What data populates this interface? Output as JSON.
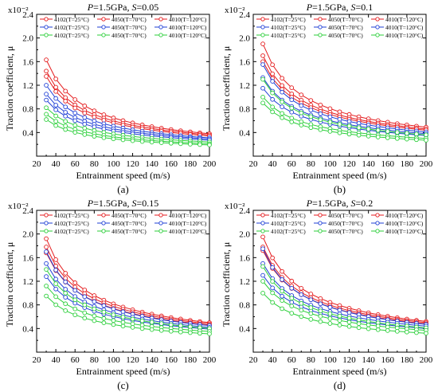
{
  "figure": {
    "panels": [
      "(a)",
      "(b)",
      "(c)",
      "(d)"
    ]
  },
  "chart_data": [
    {
      "panel_label": "(a)",
      "type": "line",
      "title": "P=1.5GPa, S=0.05",
      "ylabel": "Traction coefficient, μ",
      "xlabel": "Entrainment speed (m/s)",
      "yscale_label": "x10⁻²",
      "xlim": [
        20,
        200
      ],
      "ylim": [
        0,
        2.4
      ],
      "xticks": [
        20,
        40,
        60,
        80,
        100,
        120,
        140,
        160,
        180,
        200
      ],
      "yticks": [
        0.4,
        0.8,
        1.2,
        1.6,
        2.0,
        2.4
      ],
      "grid": false,
      "legend_position": "top",
      "x": [
        30,
        40,
        50,
        60,
        70,
        80,
        90,
        100,
        110,
        120,
        130,
        140,
        150,
        160,
        170,
        180,
        190,
        200
      ],
      "series": [
        {
          "name": "4102(T=25°C)",
          "color": "#e41a1c",
          "y0": 1.63,
          "yend": 0.38
        },
        {
          "name": "4102(T=25°C)",
          "color": "#e41a1c",
          "y0": 1.44,
          "yend": 0.36
        },
        {
          "name": "4102(T=25°C)",
          "color": "#e41a1c",
          "y0": 1.35,
          "yend": 0.34
        },
        {
          "name": "4050(T=70°C)",
          "color": "#1f3fd6",
          "y0": 1.2,
          "yend": 0.31
        },
        {
          "name": "4050(T=70°C)",
          "color": "#1f3fd6",
          "y0": 1.05,
          "yend": 0.29
        },
        {
          "name": "4050(T=70°C)",
          "color": "#1f3fd6",
          "y0": 0.95,
          "yend": 0.27
        },
        {
          "name": "4010(T=120°C)",
          "color": "#2bcf3a",
          "y0": 0.82,
          "yend": 0.24
        },
        {
          "name": "4010(T=120°C)",
          "color": "#2bcf3a",
          "y0": 0.71,
          "yend": 0.21
        },
        {
          "name": "4010(T=120°C)",
          "color": "#2bcf3a",
          "y0": 0.62,
          "yend": 0.19
        }
      ]
    },
    {
      "panel_label": "(b)",
      "type": "line",
      "title": "P=1.5GPa, S=0.1",
      "ylabel": "Traction coefficient, μ",
      "xlabel": "Entrainment speed (m/s)",
      "yscale_label": "x10⁻²",
      "xlim": [
        20,
        200
      ],
      "ylim": [
        0,
        2.4
      ],
      "xticks": [
        20,
        40,
        60,
        80,
        100,
        120,
        140,
        160,
        180,
        200
      ],
      "yticks": [
        0.4,
        0.8,
        1.2,
        1.6,
        2.0,
        2.4
      ],
      "grid": false,
      "legend_position": "top",
      "x": [
        30,
        40,
        50,
        60,
        70,
        80,
        90,
        100,
        110,
        120,
        130,
        140,
        150,
        160,
        170,
        180,
        190,
        200
      ],
      "series": [
        {
          "name": "4102(T=25°C)",
          "color": "#e41a1c",
          "y0": 1.9,
          "yend": 0.49
        },
        {
          "name": "4102(T=25°C)",
          "color": "#e41a1c",
          "y0": 1.7,
          "yend": 0.46
        },
        {
          "name": "4102(T=25°C)",
          "color": "#e41a1c",
          "y0": 1.6,
          "yend": 0.44
        },
        {
          "name": "4050(T=70°C)",
          "color": "#1f3fd6",
          "y0": 1.55,
          "yend": 0.41
        },
        {
          "name": "4050(T=70°C)",
          "color": "#1f3fd6",
          "y0": 1.33,
          "yend": 0.38
        },
        {
          "name": "4050(T=70°C)",
          "color": "#1f3fd6",
          "y0": 1.15,
          "yend": 0.35
        },
        {
          "name": "4010(T=120°C)",
          "color": "#2bcf3a",
          "y0": 1.3,
          "yend": 0.36
        },
        {
          "name": "4010(T=120°C)",
          "color": "#2bcf3a",
          "y0": 1.0,
          "yend": 0.3
        },
        {
          "name": "4010(T=120°C)",
          "color": "#2bcf3a",
          "y0": 0.9,
          "yend": 0.27
        }
      ]
    },
    {
      "panel_label": "(c)",
      "type": "line",
      "title": "P=1.5GPa, S=0.15",
      "ylabel": "Traction coefficient, μ",
      "xlabel": "Entrainment speed (m/s)",
      "yscale_label": "x10⁻²",
      "xlim": [
        20,
        200
      ],
      "ylim": [
        0,
        2.4
      ],
      "xticks": [
        20,
        40,
        60,
        80,
        100,
        120,
        140,
        160,
        180,
        200
      ],
      "yticks": [
        0.4,
        0.8,
        1.2,
        1.6,
        2.0,
        2.4
      ],
      "grid": false,
      "legend_position": "top",
      "x": [
        30,
        40,
        50,
        60,
        70,
        80,
        90,
        100,
        110,
        120,
        130,
        140,
        150,
        160,
        170,
        180,
        190,
        200
      ],
      "series": [
        {
          "name": "4102(T=25°C)",
          "color": "#e41a1c",
          "y0": 1.92,
          "yend": 0.5
        },
        {
          "name": "4102(T=25°C)",
          "color": "#e41a1c",
          "y0": 1.78,
          "yend": 0.48
        },
        {
          "name": "4102(T=25°C)",
          "color": "#e41a1c",
          "y0": 1.68,
          "yend": 0.46
        },
        {
          "name": "4050(T=70°C)",
          "color": "#1f3fd6",
          "y0": 1.7,
          "yend": 0.45
        },
        {
          "name": "4050(T=70°C)",
          "color": "#1f3fd6",
          "y0": 1.5,
          "yend": 0.42
        },
        {
          "name": "4050(T=70°C)",
          "color": "#1f3fd6",
          "y0": 1.28,
          "yend": 0.39
        },
        {
          "name": "4010(T=120°C)",
          "color": "#2bcf3a",
          "y0": 1.4,
          "yend": 0.4
        },
        {
          "name": "4010(T=120°C)",
          "color": "#2bcf3a",
          "y0": 1.12,
          "yend": 0.35
        },
        {
          "name": "4010(T=120°C)",
          "color": "#2bcf3a",
          "y0": 0.95,
          "yend": 0.31
        }
      ]
    },
    {
      "panel_label": "(d)",
      "type": "line",
      "title": "P=1.5GPa, S=0.2",
      "ylabel": "Traction coefficient, μ",
      "xlabel": "Entrainment speed (m/s)",
      "yscale_label": "x10⁻²",
      "xlim": [
        20,
        200
      ],
      "ylim": [
        0,
        2.4
      ],
      "xticks": [
        20,
        40,
        60,
        80,
        100,
        120,
        140,
        160,
        180,
        200
      ],
      "yticks": [
        0.4,
        0.8,
        1.2,
        1.6,
        2.0,
        2.4
      ],
      "grid": false,
      "legend_position": "top",
      "x": [
        30,
        40,
        50,
        60,
        70,
        80,
        90,
        100,
        110,
        120,
        130,
        140,
        150,
        160,
        170,
        180,
        190,
        200
      ],
      "series": [
        {
          "name": "4102(T=25°C)",
          "color": "#e41a1c",
          "y0": 1.95,
          "yend": 0.52
        },
        {
          "name": "4102(T=25°C)",
          "color": "#e41a1c",
          "y0": 1.78,
          "yend": 0.5
        },
        {
          "name": "4102(T=25°C)",
          "color": "#e41a1c",
          "y0": 1.72,
          "yend": 0.48
        },
        {
          "name": "4050(T=70°C)",
          "color": "#1f3fd6",
          "y0": 1.75,
          "yend": 0.47
        },
        {
          "name": "4050(T=70°C)",
          "color": "#1f3fd6",
          "y0": 1.5,
          "yend": 0.44
        },
        {
          "name": "4050(T=70°C)",
          "color": "#1f3fd6",
          "y0": 1.3,
          "yend": 0.4
        },
        {
          "name": "4010(T=120°C)",
          "color": "#2bcf3a",
          "y0": 1.45,
          "yend": 0.41
        },
        {
          "name": "4010(T=120°C)",
          "color": "#2bcf3a",
          "y0": 1.2,
          "yend": 0.37
        },
        {
          "name": "4010(T=120°C)",
          "color": "#2bcf3a",
          "y0": 1.0,
          "yend": 0.32
        }
      ]
    }
  ]
}
